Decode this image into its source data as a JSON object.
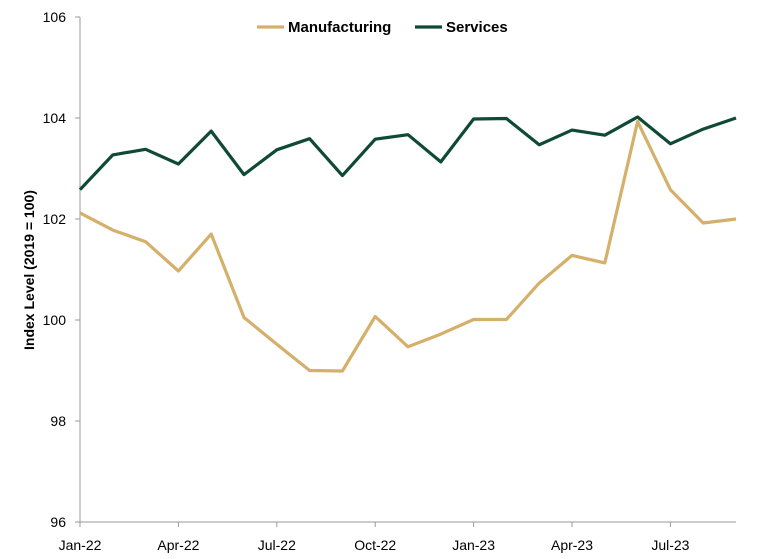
{
  "chart_data": {
    "type": "line",
    "title": "",
    "xlabel": "",
    "ylabel": "Index Level (2019 = 100)",
    "ylim": [
      96,
      106
    ],
    "yticks": [
      96,
      98,
      100,
      102,
      104,
      106
    ],
    "grid": false,
    "legend_position": "top-center",
    "x": [
      "Jan-22",
      "Feb-22",
      "Mar-22",
      "Apr-22",
      "May-22",
      "Jun-22",
      "Jul-22",
      "Aug-22",
      "Sep-22",
      "Oct-22",
      "Nov-22",
      "Dec-22",
      "Jan-23",
      "Feb-23",
      "Mar-23",
      "Apr-23",
      "May-23",
      "Jun-23",
      "Jul-23",
      "Aug-23",
      "Sep-23"
    ],
    "xtick_labels": [
      "Jan-22",
      "Apr-22",
      "Jul-22",
      "Oct-22",
      "Jan-23",
      "Apr-23",
      "Jul-23"
    ],
    "xtick_indices": [
      0,
      3,
      6,
      9,
      12,
      15,
      18
    ],
    "series": [
      {
        "name": "Manufacturing",
        "color": "#d4b06a",
        "values": [
          102.12,
          101.78,
          101.55,
          100.97,
          101.7,
          100.05,
          99.52,
          99.0,
          98.99,
          100.07,
          99.47,
          99.72,
          100.01,
          100.01,
          100.73,
          101.28,
          101.13,
          103.93,
          102.58,
          101.92,
          102.0
        ]
      },
      {
        "name": "Services",
        "color": "#0f4a36",
        "values": [
          102.58,
          103.27,
          103.38,
          103.09,
          103.74,
          102.88,
          103.37,
          103.59,
          102.86,
          103.58,
          103.67,
          103.13,
          103.98,
          103.99,
          103.47,
          103.76,
          103.66,
          104.02,
          103.49,
          103.78,
          104.0
        ]
      }
    ]
  }
}
